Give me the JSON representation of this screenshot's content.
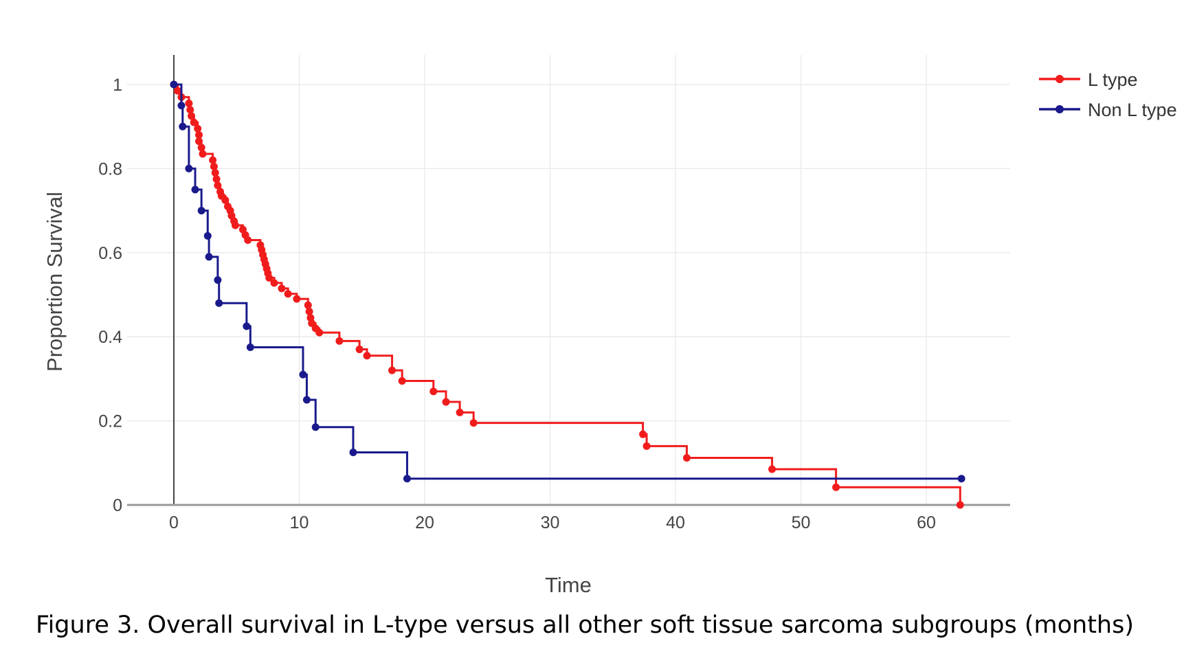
{
  "chart_data": {
    "type": "line",
    "step": true,
    "title": "",
    "xlabel": "Time",
    "ylabel": "Proportion Survival",
    "xlim": [
      -4,
      67
    ],
    "ylim": [
      0,
      1.07
    ],
    "xticks": [
      0,
      10,
      20,
      30,
      40,
      50,
      60
    ],
    "yticks": [
      0,
      0.2,
      0.4,
      0.6,
      0.8,
      1
    ],
    "xtick_labels": [
      "0",
      "10",
      "20",
      "30",
      "40",
      "50",
      "60"
    ],
    "ytick_labels": [
      "0",
      "0.2",
      "0.4",
      "0.6",
      "0.8",
      "1"
    ],
    "grid": true,
    "legend_position": "top-right",
    "series": [
      {
        "name": "L type",
        "color": "#f01c1c",
        "steps": [
          [
            0,
            1
          ],
          [
            0.3,
            0.985
          ],
          [
            0.6,
            0.97
          ],
          [
            1.2,
            0.955
          ],
          [
            1.3,
            0.94
          ],
          [
            1.4,
            0.925
          ],
          [
            1.6,
            0.91
          ],
          [
            1.9,
            0.895
          ],
          [
            2.0,
            0.88
          ],
          [
            2.0,
            0.865
          ],
          [
            2.2,
            0.85
          ],
          [
            2.3,
            0.835
          ],
          [
            3.1,
            0.82
          ],
          [
            3.2,
            0.805
          ],
          [
            3.3,
            0.79
          ],
          [
            3.4,
            0.775
          ],
          [
            3.5,
            0.76
          ],
          [
            3.7,
            0.745
          ],
          [
            3.8,
            0.735
          ],
          [
            4.1,
            0.725
          ],
          [
            4.3,
            0.71
          ],
          [
            4.5,
            0.7
          ],
          [
            4.6,
            0.688
          ],
          [
            4.8,
            0.675
          ],
          [
            4.9,
            0.665
          ],
          [
            5.5,
            0.655
          ],
          [
            5.7,
            0.642
          ],
          [
            5.9,
            0.63
          ],
          [
            6.9,
            0.618
          ],
          [
            7.0,
            0.607
          ],
          [
            7.1,
            0.595
          ],
          [
            7.2,
            0.584
          ],
          [
            7.3,
            0.573
          ],
          [
            7.4,
            0.562
          ],
          [
            7.5,
            0.551
          ],
          [
            7.6,
            0.54
          ],
          [
            8.0,
            0.528
          ],
          [
            8.6,
            0.515
          ],
          [
            9.1,
            0.502
          ],
          [
            9.8,
            0.49
          ],
          [
            10.7,
            0.475
          ],
          [
            10.8,
            0.46
          ],
          [
            10.9,
            0.445
          ],
          [
            11.0,
            0.432
          ],
          [
            11.3,
            0.42
          ],
          [
            11.6,
            0.41
          ],
          [
            13.2,
            0.39
          ],
          [
            14.8,
            0.37
          ],
          [
            15.4,
            0.355
          ],
          [
            17.4,
            0.32
          ],
          [
            18.2,
            0.295
          ],
          [
            20.7,
            0.27
          ],
          [
            21.7,
            0.245
          ],
          [
            22.8,
            0.22
          ],
          [
            23.9,
            0.195
          ],
          [
            37.4,
            0.168
          ],
          [
            37.7,
            0.14
          ],
          [
            40.9,
            0.112
          ],
          [
            47.7,
            0.085
          ],
          [
            52.8,
            0.042
          ],
          [
            62.7,
            0.0
          ]
        ],
        "markers": [
          [
            0,
            1
          ],
          [
            0.3,
            0.985
          ],
          [
            0.6,
            0.97
          ],
          [
            1.2,
            0.955
          ],
          [
            1.3,
            0.94
          ],
          [
            1.4,
            0.925
          ],
          [
            1.6,
            0.91
          ],
          [
            1.9,
            0.895
          ],
          [
            2.0,
            0.88
          ],
          [
            2.0,
            0.865
          ],
          [
            2.2,
            0.85
          ],
          [
            2.3,
            0.835
          ],
          [
            3.1,
            0.82
          ],
          [
            3.2,
            0.805
          ],
          [
            3.3,
            0.79
          ],
          [
            3.4,
            0.775
          ],
          [
            3.5,
            0.76
          ],
          [
            3.7,
            0.745
          ],
          [
            3.8,
            0.735
          ],
          [
            4.1,
            0.725
          ],
          [
            4.3,
            0.71
          ],
          [
            4.5,
            0.7
          ],
          [
            4.6,
            0.688
          ],
          [
            4.8,
            0.675
          ],
          [
            4.9,
            0.665
          ],
          [
            5.5,
            0.655
          ],
          [
            5.7,
            0.642
          ],
          [
            5.9,
            0.63
          ],
          [
            6.9,
            0.618
          ],
          [
            7.0,
            0.607
          ],
          [
            7.1,
            0.595
          ],
          [
            7.2,
            0.584
          ],
          [
            7.3,
            0.573
          ],
          [
            7.4,
            0.562
          ],
          [
            7.5,
            0.551
          ],
          [
            7.6,
            0.54
          ],
          [
            8.0,
            0.528
          ],
          [
            8.6,
            0.515
          ],
          [
            9.1,
            0.502
          ],
          [
            9.8,
            0.49
          ],
          [
            10.7,
            0.475
          ],
          [
            10.8,
            0.46
          ],
          [
            10.9,
            0.445
          ],
          [
            11.0,
            0.432
          ],
          [
            11.3,
            0.42
          ],
          [
            11.6,
            0.41
          ],
          [
            13.2,
            0.39
          ],
          [
            14.8,
            0.37
          ],
          [
            15.4,
            0.355
          ],
          [
            17.4,
            0.32
          ],
          [
            18.2,
            0.295
          ],
          [
            20.7,
            0.27
          ],
          [
            21.7,
            0.245
          ],
          [
            22.8,
            0.22
          ],
          [
            23.9,
            0.195
          ],
          [
            37.4,
            0.168
          ],
          [
            37.7,
            0.14
          ],
          [
            40.9,
            0.112
          ],
          [
            47.7,
            0.085
          ],
          [
            52.8,
            0.042
          ],
          [
            62.7,
            0.0
          ]
        ]
      },
      {
        "name": "Non L type",
        "color": "#1a1a8c",
        "steps": [
          [
            0,
            1
          ],
          [
            0.6,
            0.95
          ],
          [
            0.7,
            0.9
          ],
          [
            1.2,
            0.8
          ],
          [
            1.7,
            0.75
          ],
          [
            2.2,
            0.7
          ],
          [
            2.7,
            0.64
          ],
          [
            2.8,
            0.59
          ],
          [
            3.5,
            0.535
          ],
          [
            3.6,
            0.48
          ],
          [
            5.8,
            0.425
          ],
          [
            6.1,
            0.375
          ],
          [
            10.3,
            0.31
          ],
          [
            10.6,
            0.25
          ],
          [
            11.3,
            0.185
          ],
          [
            14.3,
            0.125
          ],
          [
            18.6,
            0.0625
          ],
          [
            62.8,
            0.0625
          ]
        ],
        "markers": [
          [
            0,
            1
          ],
          [
            0.6,
            0.95
          ],
          [
            0.7,
            0.9
          ],
          [
            1.2,
            0.8
          ],
          [
            1.7,
            0.75
          ],
          [
            2.2,
            0.7
          ],
          [
            2.7,
            0.64
          ],
          [
            2.8,
            0.59
          ],
          [
            3.5,
            0.535
          ],
          [
            3.6,
            0.48
          ],
          [
            5.8,
            0.425
          ],
          [
            6.1,
            0.375
          ],
          [
            10.3,
            0.31
          ],
          [
            10.6,
            0.25
          ],
          [
            11.3,
            0.185
          ],
          [
            14.3,
            0.125
          ],
          [
            18.6,
            0.0625
          ],
          [
            62.8,
            0.0625
          ]
        ]
      }
    ]
  },
  "figure": {
    "caption": "Figure 3. Overall survival in L-type versus all other soft tissue sarcoma subgroups (months)"
  }
}
